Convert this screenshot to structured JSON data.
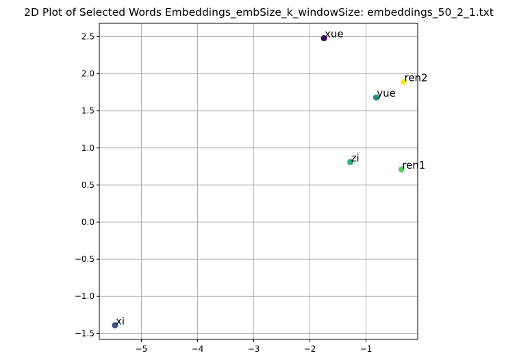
{
  "chart_data": {
    "type": "scatter",
    "title": "2D Plot of Selected Words Embeddings_embSize_k_windowSize: embeddings_50_2_1.txt",
    "xlabel": "",
    "ylabel": "",
    "xlim": [
      -5.75,
      -0.08
    ],
    "ylim": [
      -1.58,
      2.68
    ],
    "grid": true,
    "xticks": [
      -5,
      -4,
      -3,
      -2,
      -1
    ],
    "xtick_labels": [
      "−5",
      "−4",
      "−3",
      "−2",
      "−1"
    ],
    "yticks": [
      -1.5,
      -1.0,
      -0.5,
      0.0,
      0.5,
      1.0,
      1.5,
      2.0,
      2.5
    ],
    "ytick_labels": [
      "−1.5",
      "−1.0",
      "−0.5",
      "0.0",
      "0.5",
      "1.0",
      "1.5",
      "2.0",
      "2.5"
    ],
    "points": [
      {
        "label": "xue",
        "x": -1.75,
        "y": 2.48,
        "color": "#440154"
      },
      {
        "label": "xi",
        "x": -5.47,
        "y": -1.39,
        "color": "#3b528b"
      },
      {
        "label": "yue",
        "x": -0.82,
        "y": 1.68,
        "color": "#21918c"
      },
      {
        "label": "zi",
        "x": -1.28,
        "y": 0.81,
        "color": "#27ad81"
      },
      {
        "label": "ren1",
        "x": -0.37,
        "y": 0.71,
        "color": "#5ec962"
      },
      {
        "label": "ren2",
        "x": -0.33,
        "y": 1.89,
        "color": "#fde725"
      }
    ]
  }
}
